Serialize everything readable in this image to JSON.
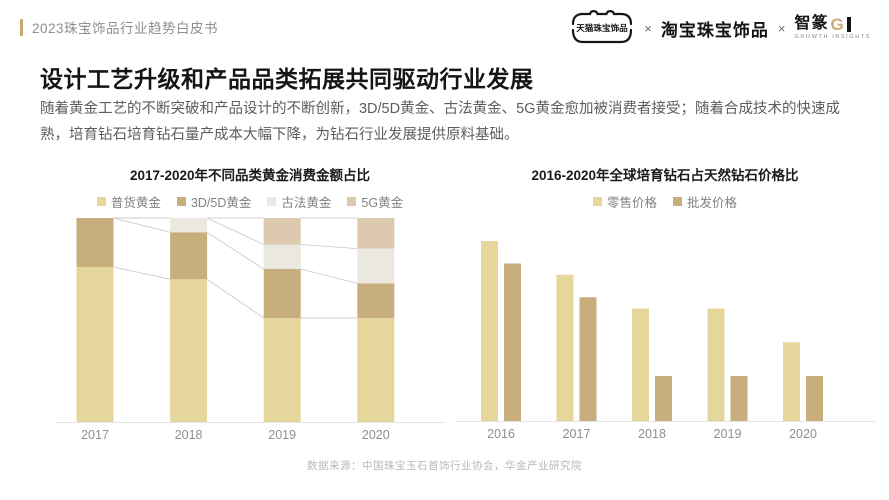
{
  "header": {
    "label": "2023珠宝饰品行业趋势白皮书",
    "logos": {
      "tmall": "天猫珠宝饰品",
      "separator1": "×",
      "taobao": "淘宝珠宝饰品",
      "separator2": "×",
      "gi_name": "智篆",
      "gi_g": "G",
      "gi_sub": "GROWTH INSIGHTS"
    }
  },
  "page": {
    "title": "设计工艺升级和产品品类拓展共同驱动行业发展",
    "description": "随着黄金工艺的不断突破和产品设计的不断创新，3D/5D黄金、古法黄金、5G黄金愈加被消费者接受；随着合成技术的快速成熟，培育钻石培育钻石量产成本大幅下降，为钻石行业发展提供原料基础。"
  },
  "footer": {
    "source": "数据来源：中国珠宝玉石首饰行业协会，华金产业研究院"
  },
  "colors": {
    "accent_gold": "#c9a86b",
    "bar_light_gold": "#e5d69b",
    "bar_tan": "#c8ae7c",
    "bar_cream": "#ebe8e0",
    "bar_beige": "#dcc9ae",
    "axis_line": "#e4e4e4",
    "axis_label": "#8f8f8f",
    "connector": "#c7c7c7"
  },
  "chart_data": [
    {
      "type": "bar",
      "subtype": "stacked-100-percent",
      "title": "2017-2020年不同品类黄金消费金额占比",
      "categories": [
        "2017",
        "2018",
        "2019",
        "2020"
      ],
      "series": [
        {
          "name": "普货黄金",
          "color": "#e5d69b",
          "values": [
            76,
            70,
            51,
            51
          ]
        },
        {
          "name": "3D/5D黄金",
          "color": "#c8ae7c",
          "values": [
            24,
            23,
            24,
            17
          ]
        },
        {
          "name": "古法黄金",
          "color": "#ebe8e0",
          "values": [
            0,
            7,
            12,
            17
          ]
        },
        {
          "name": "5G黄金",
          "color": "#dcc9ae",
          "values": [
            0,
            0,
            13,
            15
          ]
        }
      ],
      "unit": "%",
      "ylim": [
        0,
        100
      ],
      "grid": false,
      "legend_position": "top",
      "connectors": true
    },
    {
      "type": "bar",
      "subtype": "grouped",
      "title": "2016-2020年全球培育钻石占天然钻石价格比",
      "categories": [
        "2016",
        "2017",
        "2018",
        "2019",
        "2020"
      ],
      "series": [
        {
          "name": "零售价格",
          "color": "#e5d69b",
          "values": [
            80,
            65,
            50,
            50,
            35
          ]
        },
        {
          "name": "批发价格",
          "color": "#c8ae7c",
          "values": [
            70,
            55,
            20,
            20,
            20
          ]
        }
      ],
      "unit": "%",
      "ylim": [
        0,
        90
      ],
      "grid": false,
      "legend_position": "top"
    }
  ]
}
